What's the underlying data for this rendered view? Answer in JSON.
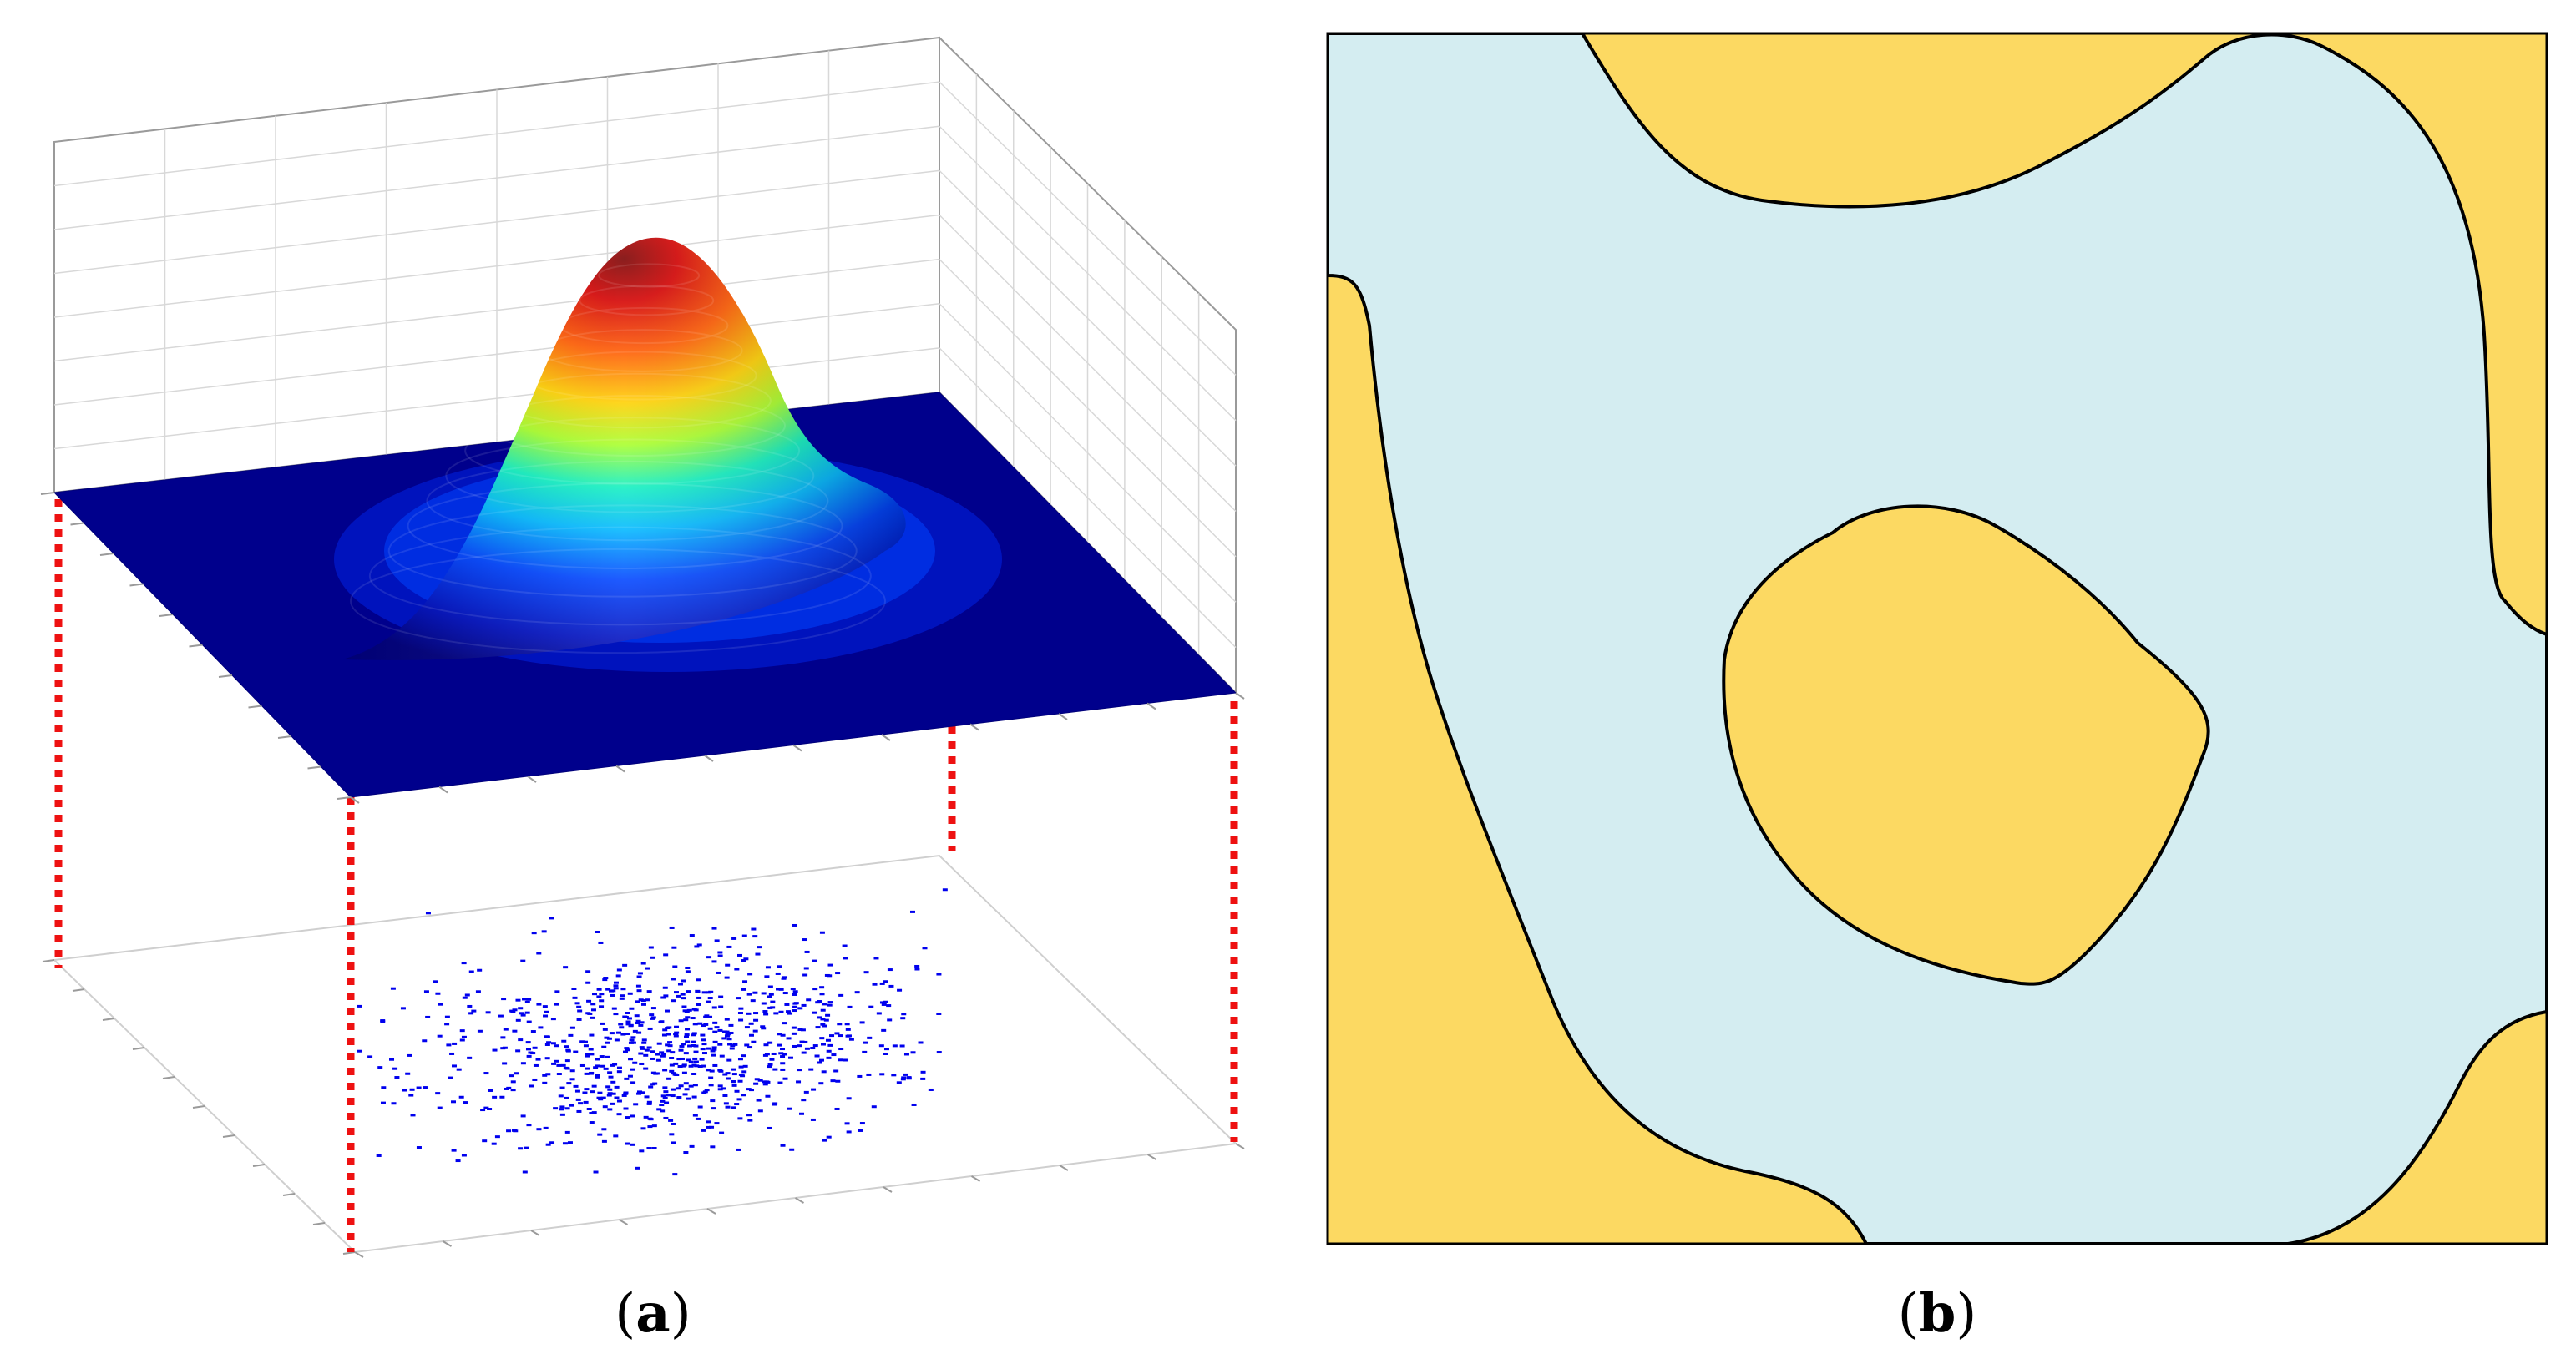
{
  "figure": {
    "panels": [
      {
        "id": "a",
        "caption_open": "(",
        "caption_letter": "a",
        "caption_close": ")",
        "description_kind": "3d-gaussian-surface-with-scatter-projection",
        "colormap": [
          "#00007f",
          "#0000ff",
          "#00bfff",
          "#00ffcc",
          "#7fff00",
          "#ffff00",
          "#ff9900",
          "#ff0000",
          "#8b0000"
        ],
        "scatter_color": "#0000ee",
        "projection_line_color": "#ee1111",
        "grid_color": "#cfcfcf",
        "axis_color": "#9a9a9a"
      },
      {
        "id": "b",
        "caption_open": "(",
        "caption_letter": "b",
        "caption_close": ")",
        "description_kind": "two-phase-region-map",
        "phase_colors": {
          "matrix": "#d4edf1",
          "inclusion": "#fcd962"
        },
        "boundary_color": "#000000"
      }
    ]
  }
}
